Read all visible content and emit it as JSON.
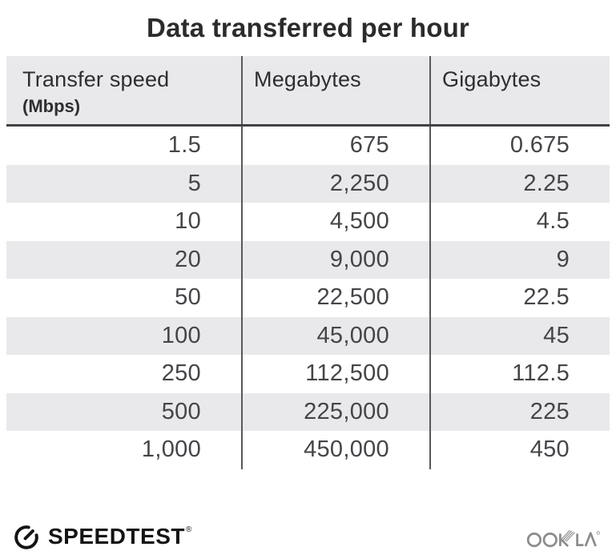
{
  "title": "Data transferred per hour",
  "table": {
    "columns": [
      {
        "label": "Transfer speed",
        "sublabel": "(Mbps)"
      },
      {
        "label": "Megabytes",
        "sublabel": ""
      },
      {
        "label": "Gigabytes",
        "sublabel": ""
      }
    ],
    "rows": [
      [
        "1.5",
        "675",
        "0.675"
      ],
      [
        "5",
        "2,250",
        "2.25"
      ],
      [
        "10",
        "4,500",
        "4.5"
      ],
      [
        "20",
        "9,000",
        "9"
      ],
      [
        "50",
        "22,500",
        "22.5"
      ],
      [
        "100",
        "45,000",
        "45"
      ],
      [
        "250",
        "112,500",
        "112.5"
      ],
      [
        "500",
        "225,000",
        "225"
      ],
      [
        "1,000",
        "450,000",
        "450"
      ]
    ]
  },
  "chart_data": {
    "type": "table",
    "title": "Data transferred per hour",
    "columns": [
      "Transfer speed (Mbps)",
      "Megabytes",
      "Gigabytes"
    ],
    "rows": [
      [
        1.5,
        675,
        0.675
      ],
      [
        5,
        2250,
        2.25
      ],
      [
        10,
        4500,
        4.5
      ],
      [
        20,
        9000,
        9
      ],
      [
        50,
        22500,
        22.5
      ],
      [
        100,
        45000,
        45
      ],
      [
        250,
        112500,
        112.5
      ],
      [
        500,
        225000,
        225
      ],
      [
        1000,
        450000,
        450
      ]
    ],
    "layout": {
      "alternating_row_shading": true,
      "numbers_right_aligned": true
    }
  },
  "footer": {
    "speedtest_label": "SPEEDTEST",
    "speedtest_registered_mark": "®",
    "ookla_label": "OOKLA"
  },
  "colors": {
    "title_text": "#2b2b2d",
    "header_bg": "#e9e8eb",
    "alt_row_bg": "#e9e8eb",
    "column_divider": "#58575a",
    "header_rule": "#414042",
    "number_text": "#454448",
    "speedtest_black": "#141414",
    "ookla_gray": "#8b8b8d"
  }
}
